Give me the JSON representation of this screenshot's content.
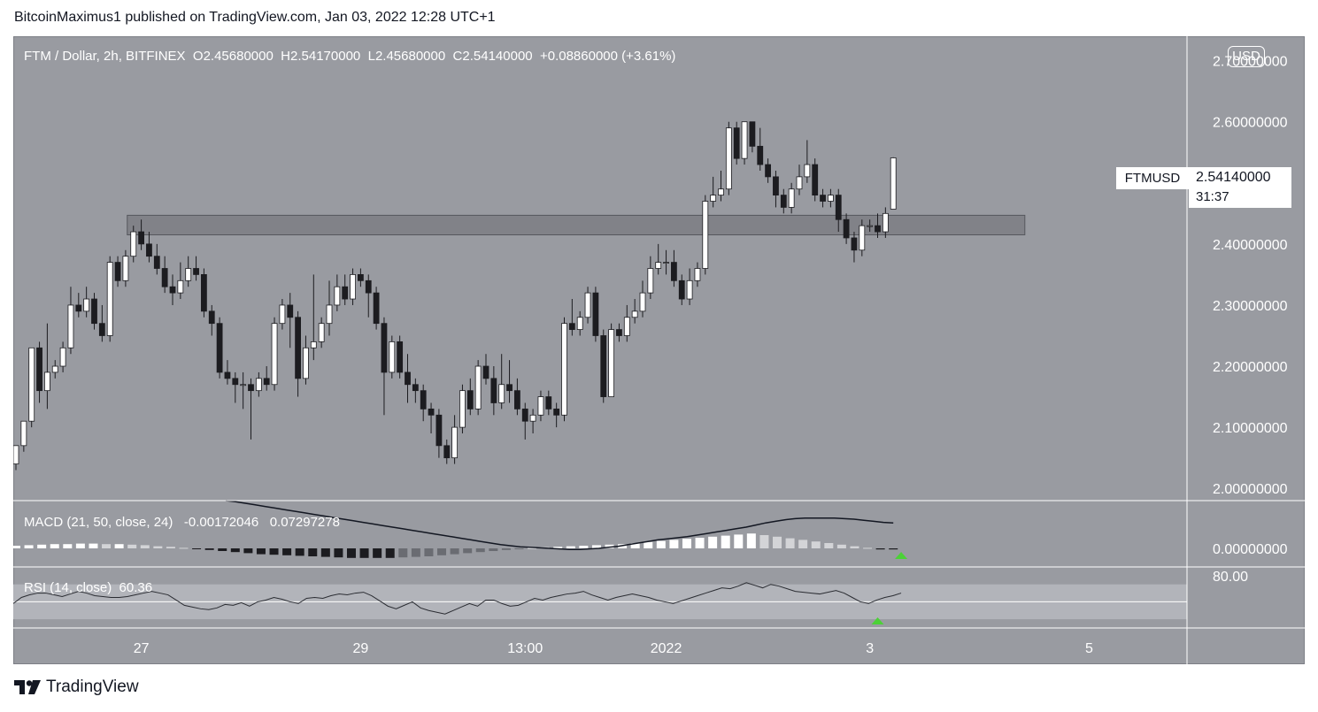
{
  "header": {
    "published_by": "BitcoinMaximus1 published on TradingView.com, Jan 03, 2022 12:28 UTC+1"
  },
  "legend": {
    "symbol": "FTM / Dollar, 2h, BITFINEX",
    "o_label": "O",
    "o_value": "2.45680000",
    "h_label": "H",
    "h_value": "2.54170000",
    "l_label": "L",
    "l_value": "2.45680000",
    "c_label": "C",
    "c_value": "2.54140000",
    "change": "+0.08860000 (+3.61%)"
  },
  "currency_button": "USD",
  "price_tag": {
    "symbol": "FTMUSD",
    "price": "2.54140000",
    "countdown": "31:37"
  },
  "macd_legend": {
    "label": "MACD (21, 50, close, 24)",
    "value1": "-0.00172046",
    "value2": "0.07297278"
  },
  "rsi_legend": {
    "label": "RSI (14, close)",
    "value": "60.36"
  },
  "brand": {
    "name": "TradingView"
  },
  "colors": {
    "bg": "#999ba1",
    "up": "#ffffff",
    "down": "#1c1c20",
    "zone": "#7c7e84",
    "arrow": "#4cd137"
  },
  "chart_data": [
    {
      "type": "candlestick",
      "title": "FTM / Dollar, 2h, BITFINEX",
      "ylim": [
        1.98,
        2.74
      ],
      "y_ticks": [
        "2.70000000",
        "2.60000000",
        "2.40000000",
        "2.30000000",
        "2.20000000",
        "2.10000000",
        "2.00000000"
      ],
      "y_tick_values": [
        2.7,
        2.6,
        2.4,
        2.3,
        2.2,
        2.1,
        2.0
      ],
      "x_ticks": [
        "27",
        "29",
        "13:00",
        "2022",
        "3",
        "5"
      ],
      "x_tick_bars": [
        16,
        44,
        65,
        83,
        109,
        137
      ],
      "resistance_zone": [
        2.415,
        2.447
      ],
      "candles": [
        [
          2.04,
          2.07,
          2.03,
          2.07
        ],
        [
          2.07,
          2.11,
          2.06,
          2.11
        ],
        [
          2.11,
          2.23,
          2.1,
          2.23
        ],
        [
          2.23,
          2.16,
          2.14,
          2.24
        ],
        [
          2.16,
          2.19,
          2.13,
          2.27
        ],
        [
          2.19,
          2.2,
          2.18,
          2.21
        ],
        [
          2.2,
          2.23,
          2.19,
          2.24
        ],
        [
          2.23,
          2.3,
          2.22,
          2.33
        ],
        [
          2.3,
          2.29,
          2.28,
          2.32
        ],
        [
          2.29,
          2.31,
          2.28,
          2.33
        ],
        [
          2.31,
          2.27,
          2.26,
          2.32
        ],
        [
          2.27,
          2.25,
          2.24,
          2.3
        ],
        [
          2.25,
          2.37,
          2.24,
          2.38
        ],
        [
          2.37,
          2.34,
          2.33,
          2.38
        ],
        [
          2.34,
          2.38,
          2.33,
          2.39
        ],
        [
          2.38,
          2.42,
          2.37,
          2.43
        ],
        [
          2.42,
          2.4,
          2.39,
          2.44
        ],
        [
          2.4,
          2.38,
          2.37,
          2.42
        ],
        [
          2.38,
          2.36,
          2.35,
          2.4
        ],
        [
          2.36,
          2.33,
          2.32,
          2.38
        ],
        [
          2.33,
          2.32,
          2.3,
          2.35
        ],
        [
          2.32,
          2.34,
          2.31,
          2.37
        ],
        [
          2.34,
          2.36,
          2.33,
          2.38
        ],
        [
          2.36,
          2.35,
          2.34,
          2.38
        ],
        [
          2.35,
          2.29,
          2.28,
          2.36
        ],
        [
          2.29,
          2.27,
          2.25,
          2.3
        ],
        [
          2.27,
          2.19,
          2.18,
          2.28
        ],
        [
          2.19,
          2.18,
          2.17,
          2.21
        ],
        [
          2.18,
          2.17,
          2.14,
          2.19
        ],
        [
          2.17,
          2.17,
          2.13,
          2.19
        ],
        [
          2.17,
          2.16,
          2.08,
          2.18
        ],
        [
          2.16,
          2.18,
          2.15,
          2.19
        ],
        [
          2.18,
          2.17,
          2.16,
          2.2
        ],
        [
          2.17,
          2.27,
          2.16,
          2.28
        ],
        [
          2.27,
          2.3,
          2.26,
          2.31
        ],
        [
          2.3,
          2.28,
          2.23,
          2.32
        ],
        [
          2.28,
          2.18,
          2.15,
          2.29
        ],
        [
          2.18,
          2.23,
          2.17,
          2.25
        ],
        [
          2.23,
          2.24,
          2.21,
          2.35
        ],
        [
          2.24,
          2.27,
          2.23,
          2.28
        ],
        [
          2.27,
          2.3,
          2.25,
          2.34
        ],
        [
          2.3,
          2.33,
          2.29,
          2.35
        ],
        [
          2.33,
          2.31,
          2.3,
          2.35
        ],
        [
          2.31,
          2.35,
          2.3,
          2.36
        ],
        [
          2.35,
          2.34,
          2.33,
          2.36
        ],
        [
          2.34,
          2.32,
          2.28,
          2.35
        ],
        [
          2.32,
          2.27,
          2.26,
          2.33
        ],
        [
          2.27,
          2.19,
          2.12,
          2.28
        ],
        [
          2.19,
          2.24,
          2.18,
          2.25
        ],
        [
          2.24,
          2.19,
          2.18,
          2.25
        ],
        [
          2.19,
          2.17,
          2.14,
          2.22
        ],
        [
          2.17,
          2.16,
          2.14,
          2.18
        ],
        [
          2.16,
          2.13,
          2.11,
          2.17
        ],
        [
          2.13,
          2.12,
          2.09,
          2.14
        ],
        [
          2.12,
          2.07,
          2.05,
          2.13
        ],
        [
          2.07,
          2.05,
          2.04,
          2.08
        ],
        [
          2.05,
          2.1,
          2.04,
          2.12
        ],
        [
          2.1,
          2.16,
          2.09,
          2.17
        ],
        [
          2.16,
          2.13,
          2.12,
          2.18
        ],
        [
          2.13,
          2.2,
          2.12,
          2.21
        ],
        [
          2.2,
          2.18,
          2.17,
          2.22
        ],
        [
          2.18,
          2.14,
          2.12,
          2.2
        ],
        [
          2.14,
          2.17,
          2.13,
          2.22
        ],
        [
          2.17,
          2.16,
          2.14,
          2.21
        ],
        [
          2.16,
          2.13,
          2.12,
          2.18
        ],
        [
          2.13,
          2.11,
          2.08,
          2.14
        ],
        [
          2.11,
          2.12,
          2.09,
          2.13
        ],
        [
          2.12,
          2.15,
          2.11,
          2.16
        ],
        [
          2.15,
          2.13,
          2.12,
          2.16
        ],
        [
          2.13,
          2.12,
          2.1,
          2.14
        ],
        [
          2.12,
          2.27,
          2.11,
          2.28
        ],
        [
          2.27,
          2.26,
          2.25,
          2.31
        ],
        [
          2.26,
          2.28,
          2.25,
          2.29
        ],
        [
          2.28,
          2.32,
          2.27,
          2.33
        ],
        [
          2.32,
          2.25,
          2.24,
          2.33
        ],
        [
          2.25,
          2.15,
          2.14,
          2.26
        ],
        [
          2.15,
          2.26,
          2.15,
          2.27
        ],
        [
          2.26,
          2.25,
          2.24,
          2.27
        ],
        [
          2.25,
          2.28,
          2.24,
          2.3
        ],
        [
          2.28,
          2.29,
          2.27,
          2.31
        ],
        [
          2.29,
          2.32,
          2.28,
          2.34
        ],
        [
          2.32,
          2.36,
          2.31,
          2.38
        ],
        [
          2.36,
          2.37,
          2.35,
          2.4
        ],
        [
          2.37,
          2.37,
          2.35,
          2.39
        ],
        [
          2.37,
          2.34,
          2.33,
          2.39
        ],
        [
          2.34,
          2.31,
          2.3,
          2.35
        ],
        [
          2.31,
          2.34,
          2.3,
          2.36
        ],
        [
          2.34,
          2.36,
          2.33,
          2.37
        ],
        [
          2.36,
          2.47,
          2.35,
          2.48
        ],
        [
          2.47,
          2.48,
          2.46,
          2.51
        ],
        [
          2.48,
          2.49,
          2.47,
          2.52
        ],
        [
          2.49,
          2.59,
          2.48,
          2.6
        ],
        [
          2.59,
          2.54,
          2.53,
          2.6
        ],
        [
          2.54,
          2.6,
          2.53,
          2.6
        ],
        [
          2.6,
          2.56,
          2.55,
          2.6
        ],
        [
          2.56,
          2.53,
          2.52,
          2.59
        ],
        [
          2.53,
          2.51,
          2.5,
          2.54
        ],
        [
          2.51,
          2.48,
          2.46,
          2.52
        ],
        [
          2.48,
          2.46,
          2.45,
          2.49
        ],
        [
          2.46,
          2.49,
          2.45,
          2.5
        ],
        [
          2.49,
          2.51,
          2.48,
          2.53
        ],
        [
          2.51,
          2.53,
          2.5,
          2.57
        ],
        [
          2.53,
          2.48,
          2.47,
          2.54
        ],
        [
          2.48,
          2.47,
          2.46,
          2.49
        ],
        [
          2.47,
          2.48,
          2.46,
          2.49
        ],
        [
          2.48,
          2.44,
          2.42,
          2.49
        ],
        [
          2.44,
          2.41,
          2.4,
          2.45
        ],
        [
          2.41,
          2.39,
          2.37,
          2.42
        ],
        [
          2.39,
          2.43,
          2.38,
          2.44
        ],
        [
          2.43,
          2.43,
          2.42,
          2.44
        ],
        [
          2.43,
          2.42,
          2.41,
          2.45
        ],
        [
          2.42,
          2.45,
          2.41,
          2.46
        ],
        [
          2.457,
          2.541,
          2.457,
          2.542
        ]
      ]
    },
    {
      "type": "bar",
      "title": "MACD (21, 50, close, 24)",
      "ylim": [
        -0.035,
        0.09
      ],
      "y_ticks": [
        "0.00000000"
      ],
      "y_tick_values": [
        0.0
      ],
      "series": [
        {
          "name": "MACD",
          "values": [
            0.005,
            0.006,
            0.007,
            0.008,
            0.008,
            0.009,
            0.009,
            0.008,
            0.008,
            0.007,
            0.006,
            0.004,
            0.003,
            0.001,
            -0.001,
            -0.003,
            -0.005,
            -0.007,
            -0.009,
            -0.011,
            -0.012,
            -0.013,
            -0.014,
            -0.015,
            -0.016,
            -0.017,
            -0.018,
            -0.018,
            -0.018,
            -0.018,
            -0.017,
            -0.016,
            -0.015,
            -0.013,
            -0.011,
            -0.009,
            -0.007,
            -0.005,
            -0.003,
            -0.001,
            0.001,
            0.002,
            0.003,
            0.004,
            0.005,
            0.006,
            0.007,
            0.008,
            0.01,
            0.012,
            0.014,
            0.016,
            0.018,
            0.02,
            0.022,
            0.024,
            0.026,
            0.028,
            0.025,
            0.022,
            0.019,
            0.016,
            0.013,
            0.01,
            0.007,
            0.004,
            0.001,
            -0.002,
            -0.002
          ]
        },
        {
          "name": "Signal",
          "values": [
            0.09,
            0.088,
            0.085,
            0.082,
            0.079,
            0.076,
            0.073,
            0.07,
            0.067,
            0.064,
            0.061,
            0.058,
            0.055,
            0.052,
            0.049,
            0.046,
            0.043,
            0.04,
            0.037,
            0.034,
            0.031,
            0.028,
            0.025,
            0.022,
            0.019,
            0.016,
            0.013,
            0.01,
            0.007,
            0.005,
            0.003,
            0.002,
            0.001,
            0.0,
            -0.001,
            -0.002,
            -0.002,
            -0.001,
            0.0,
            0.002,
            0.004,
            0.007,
            0.01,
            0.013,
            0.016,
            0.018,
            0.02,
            0.022,
            0.025,
            0.028,
            0.031,
            0.034,
            0.037,
            0.04,
            0.044,
            0.048,
            0.051,
            0.054,
            0.056,
            0.057,
            0.057,
            0.057,
            0.057,
            0.056,
            0.055,
            0.053,
            0.051,
            0.049,
            0.048
          ]
        }
      ]
    },
    {
      "type": "line",
      "title": "RSI (14, close)",
      "ylim": [
        20,
        90
      ],
      "y_ticks": [
        "80.00"
      ],
      "y_tick_values": [
        80
      ],
      "band": [
        30,
        70
      ],
      "series": [
        {
          "name": "RSI",
          "values": [
            48,
            55,
            58,
            60,
            60,
            58,
            56,
            59,
            62,
            60,
            57,
            56,
            55,
            55,
            56,
            58,
            60,
            62,
            60,
            58,
            52,
            46,
            44,
            42,
            41,
            43,
            47,
            46,
            49,
            45,
            50,
            52,
            55,
            53,
            50,
            48,
            54,
            55,
            54,
            57,
            59,
            58,
            60,
            61,
            57,
            51,
            45,
            42,
            46,
            50,
            43,
            40,
            38,
            36,
            40,
            44,
            48,
            45,
            52,
            52,
            48,
            45,
            46,
            50,
            54,
            52,
            55,
            57,
            59,
            60,
            62,
            58,
            55,
            52,
            55,
            57,
            59,
            57,
            55,
            52,
            50,
            48,
            51,
            54,
            57,
            60,
            63,
            66,
            65,
            68,
            72,
            69,
            66,
            70,
            68,
            65,
            62,
            61,
            60,
            59,
            61,
            63,
            60,
            55,
            50,
            48,
            52,
            55,
            57,
            60
          ]
        }
      ]
    }
  ]
}
